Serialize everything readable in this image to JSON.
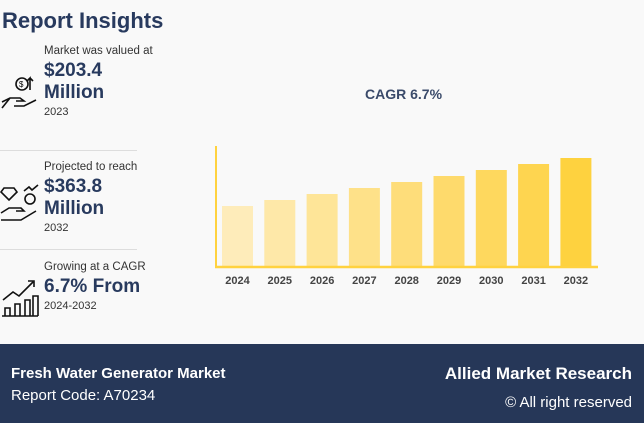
{
  "title": "Report Insights",
  "stats": [
    {
      "label": "Market was valued at",
      "value": "$203.4 Million",
      "year": "2023",
      "icon": "money-hand-icon"
    },
    {
      "label": "Projected to reach",
      "value": "$363.8 Million",
      "year": "2032",
      "icon": "diamond-hand-icon"
    },
    {
      "label": "Growing at a CAGR",
      "value": "6.7% From",
      "year": "2024-2032",
      "icon": "growth-chart-icon"
    }
  ],
  "chart_data": {
    "type": "bar",
    "title": "CAGR 6.7%",
    "categories": [
      "2024",
      "2025",
      "2026",
      "2027",
      "2028",
      "2029",
      "2030",
      "2031",
      "2032"
    ],
    "values": [
      60,
      66,
      72,
      78,
      84,
      90,
      96,
      102,
      108
    ],
    "ylim": [
      0,
      118
    ],
    "grid": false,
    "colors": [
      "#FEECBA",
      "#FEE8A8",
      "#FEE598",
      "#FEE189",
      "#FEDD7A",
      "#FEDA6C",
      "#FED85E",
      "#FED550",
      "#FED23F"
    ],
    "axis_color": "#FFD23F"
  },
  "footer": {
    "market": "Fresh Water Generator Market",
    "code": "Report Code: A70234",
    "brand": "Allied Market Research",
    "rights": "© All right reserved"
  }
}
